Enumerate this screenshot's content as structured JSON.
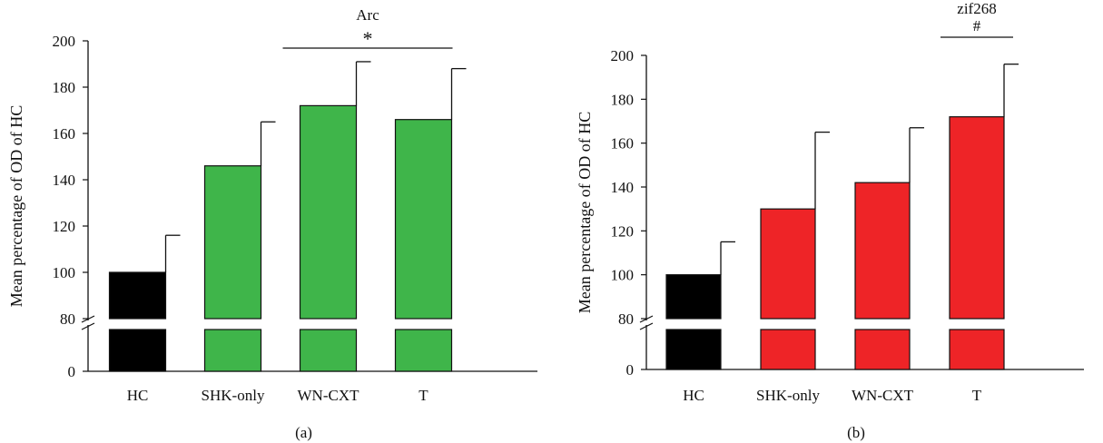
{
  "figure": {
    "background": "#ffffff",
    "axis_color": "#111111"
  },
  "chart_data": [
    {
      "type": "bar",
      "panel_label": "(a)",
      "ylabel": "Mean percentage of OD of HC",
      "categories": [
        "HC",
        "SHK-only",
        "WN-CXT",
        "T"
      ],
      "values": [
        100,
        146,
        172,
        166
      ],
      "errors": [
        16,
        19,
        19,
        22
      ],
      "colors": [
        "#000000",
        "#3fb54a",
        "#3fb54a",
        "#3fb54a"
      ],
      "yaxis": {
        "broken": true,
        "lower_ticks": [
          0,
          80
        ],
        "upper_range": [
          80,
          200
        ],
        "upper_ticks": [
          80,
          100,
          120,
          140,
          160,
          180,
          200
        ]
      },
      "annotation": {
        "label": "Arc",
        "symbol": "*",
        "from_category": "WN-CXT",
        "to_category": "T"
      }
    },
    {
      "type": "bar",
      "panel_label": "(b)",
      "ylabel": "Mean percentage of OD of HC",
      "categories": [
        "HC",
        "SHK-only",
        "WN-CXT",
        "T"
      ],
      "values": [
        100,
        130,
        142,
        172
      ],
      "errors": [
        15,
        35,
        25,
        24
      ],
      "colors": [
        "#000000",
        "#ee2427",
        "#ee2427",
        "#ee2427"
      ],
      "yaxis": {
        "broken": true,
        "lower_ticks": [
          0,
          80
        ],
        "upper_range": [
          80,
          200
        ],
        "upper_ticks": [
          80,
          100,
          120,
          140,
          160,
          180,
          200
        ]
      },
      "annotation": {
        "label": "zif268",
        "symbol": "#",
        "from_category": "T",
        "to_category": "T"
      }
    }
  ]
}
